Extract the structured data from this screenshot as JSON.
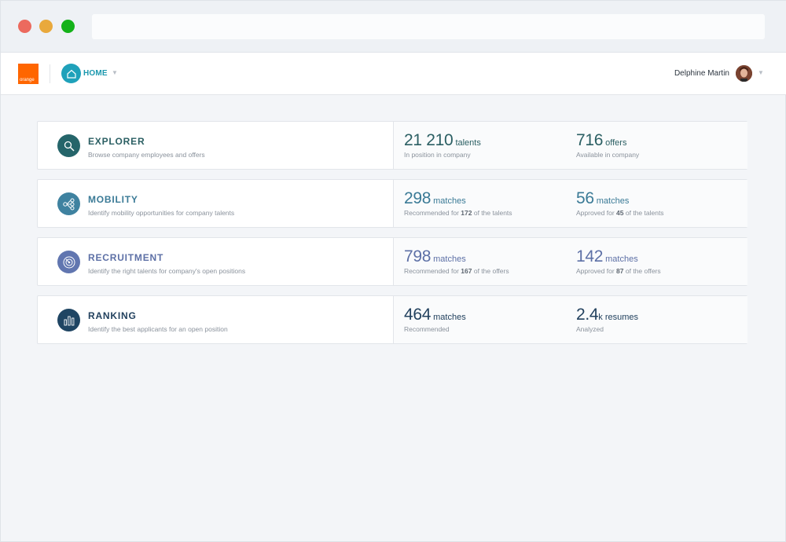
{
  "browser": {
    "url": ""
  },
  "header": {
    "brand": "orange",
    "nav_label": "HOME",
    "user_name": "Delphine Martin"
  },
  "cards": [
    {
      "title": "EXPLORER",
      "subtitle": "Browse company employees and offers",
      "icon": "search-icon",
      "color": "#25656a",
      "stat1": {
        "value": "21 210",
        "unit": "talents",
        "caption": "In position in company"
      },
      "stat2": {
        "value": "716",
        "unit": "offers",
        "caption": "Available in company"
      }
    },
    {
      "title": "MOBILITY",
      "subtitle": "Identify mobility opportunities for company talents",
      "icon": "network-icon",
      "color": "#3f82a0",
      "stat1": {
        "value": "298",
        "unit": "matches",
        "caption_pre": "Recommended for",
        "caption_bold": "172",
        "caption_post": "of the talents"
      },
      "stat2": {
        "value": "56",
        "unit": "matches",
        "caption_pre": "Approved for",
        "caption_bold": "45",
        "caption_post": "of the talents"
      }
    },
    {
      "title": "RECRUITMENT",
      "subtitle": "Identify the right talents for company's open positions",
      "icon": "target-icon",
      "color": "#6176b0",
      "stat1": {
        "value": "798",
        "unit": "matches",
        "caption_pre": "Recommended for",
        "caption_bold": "167",
        "caption_post": "of the offers"
      },
      "stat2": {
        "value": "142",
        "unit": "matches",
        "caption_pre": "Approved for",
        "caption_bold": "87",
        "caption_post": "of the offers"
      }
    },
    {
      "title": "RANKING",
      "subtitle": "Identify the best applicants for an open position",
      "icon": "ranking-icon",
      "color": "#1f4563",
      "stat1": {
        "value": "464",
        "unit": "matches",
        "caption": "Recommended"
      },
      "stat2": {
        "value": "2.4",
        "unit": "k resumes",
        "caption": "Analyzed"
      }
    }
  ]
}
